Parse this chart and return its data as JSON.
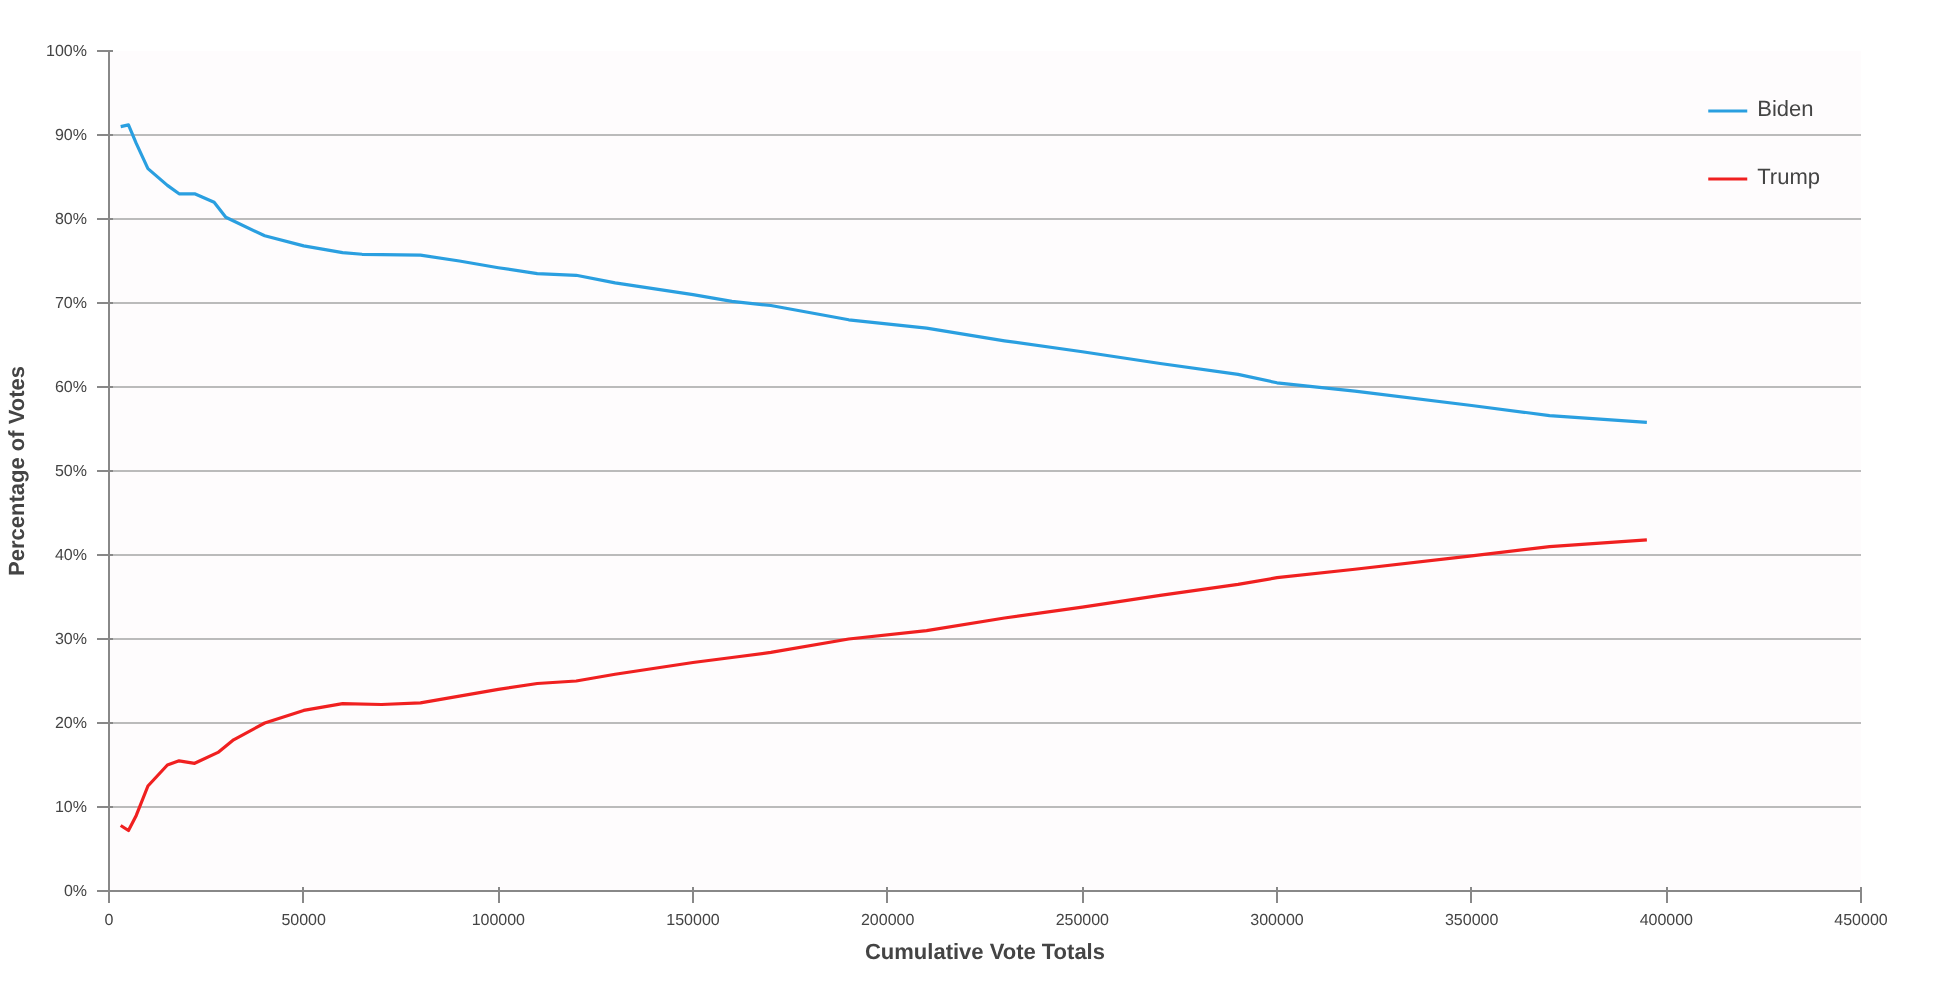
{
  "chart_data": {
    "type": "line",
    "xlabel": "Cumulative Vote Totals",
    "ylabel": "Percentage of Votes",
    "xlim": [
      0,
      450000
    ],
    "xticks": [
      0,
      50000,
      100000,
      150000,
      200000,
      250000,
      300000,
      350000,
      400000,
      450000
    ],
    "ylim": [
      0,
      100
    ],
    "yticks": [
      {
        "value": 0,
        "label": "0%"
      },
      {
        "value": 10,
        "label": "10%"
      },
      {
        "value": 20,
        "label": "20%"
      },
      {
        "value": 30,
        "label": "30%"
      },
      {
        "value": 40,
        "label": "40%"
      },
      {
        "value": 50,
        "label": "50%"
      },
      {
        "value": 60,
        "label": "60%"
      },
      {
        "value": 70,
        "label": "70%"
      },
      {
        "value": 80,
        "label": "80%"
      },
      {
        "value": 90,
        "label": "90%"
      },
      {
        "value": 100,
        "label": "100%"
      }
    ],
    "grid": "y",
    "legend": "top right",
    "marker": "none",
    "line_style": "solid",
    "series": [
      {
        "name": "Biden",
        "color": "#2a9fe0",
        "x": [
          3000,
          5000,
          7000,
          10000,
          15000,
          18000,
          22000,
          27000,
          30000,
          40000,
          50000,
          60000,
          65000,
          80000,
          90000,
          100000,
          110000,
          120000,
          130000,
          150000,
          160000,
          170000,
          190000,
          210000,
          230000,
          250000,
          270000,
          290000,
          300000,
          320000,
          350000,
          370000,
          395000
        ],
        "values": [
          91,
          91.2,
          89,
          86,
          84,
          83,
          83,
          82,
          80.2,
          78,
          76.8,
          76,
          75.8,
          75.7,
          75,
          74.2,
          73.5,
          73.3,
          72.4,
          71,
          70.2,
          69.7,
          68,
          67,
          65.5,
          64.2,
          62.8,
          61.5,
          60.5,
          59.5,
          57.8,
          56.6,
          55.8
        ]
      },
      {
        "name": "Trump",
        "color": "#f02020",
        "x": [
          3000,
          5000,
          7000,
          10000,
          15000,
          18000,
          22000,
          28000,
          32000,
          40000,
          50000,
          60000,
          70000,
          80000,
          90000,
          100000,
          110000,
          120000,
          130000,
          150000,
          160000,
          170000,
          190000,
          210000,
          230000,
          250000,
          270000,
          290000,
          300000,
          320000,
          350000,
          370000,
          395000
        ],
        "values": [
          7.8,
          7.2,
          9,
          12.5,
          15,
          15.5,
          15.2,
          16.5,
          18,
          20,
          21.5,
          22.3,
          22.2,
          22.4,
          23.2,
          24,
          24.7,
          25,
          25.8,
          27.2,
          27.8,
          28.4,
          30,
          31,
          32.5,
          33.8,
          35.2,
          36.5,
          37.3,
          38.3,
          39.9,
          41,
          41.8
        ]
      }
    ]
  }
}
